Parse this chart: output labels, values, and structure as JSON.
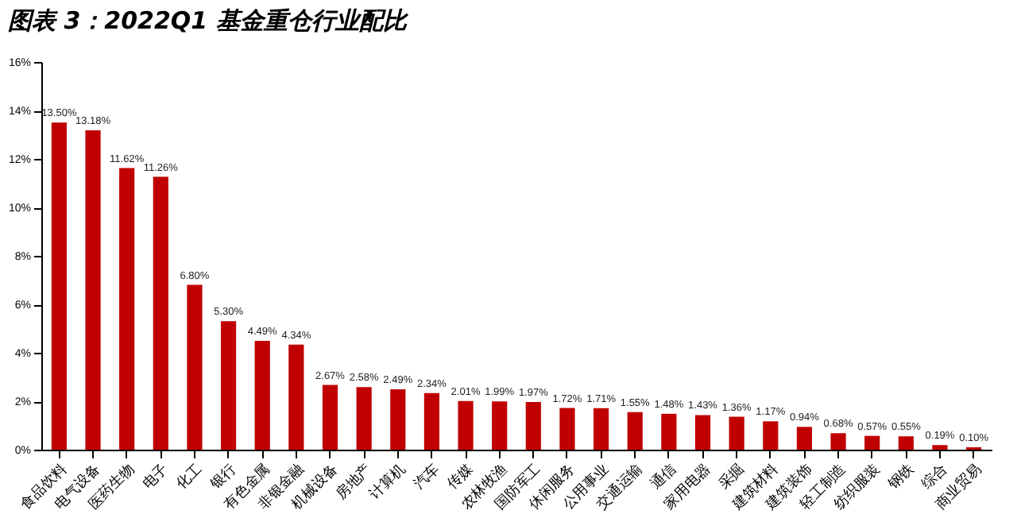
{
  "chart_data": {
    "type": "bar",
    "title": "图表 3：2022Q1 基金重仓行业配比",
    "categories": [
      "食品饮料",
      "电气设备",
      "医药生物",
      "电子",
      "化工",
      "银行",
      "有色金属",
      "非银金融",
      "机械设备",
      "房地产",
      "计算机",
      "汽车",
      "传媒",
      "农林牧渔",
      "国防军工",
      "休闲服务",
      "公用事业",
      "交通运输",
      "通信",
      "家用电器",
      "采掘",
      "建筑材料",
      "建筑装饰",
      "轻工制造",
      "纺织服装",
      "钢铁",
      "综合",
      "商业贸易"
    ],
    "values": [
      13.5,
      13.18,
      11.62,
      11.26,
      6.8,
      5.3,
      4.49,
      4.34,
      2.67,
      2.58,
      2.49,
      2.34,
      2.01,
      1.99,
      1.97,
      1.72,
      1.71,
      1.55,
      1.48,
      1.43,
      1.36,
      1.17,
      0.94,
      0.68,
      0.57,
      0.55,
      0.19,
      0.1
    ],
    "value_labels": [
      "13.50%",
      "13.18%",
      "11.62%",
      "11.26%",
      "6.80%",
      "5.30%",
      "4.49%",
      "4.34%",
      "2.67%",
      "2.58%",
      "2.49%",
      "2.34%",
      "2.01%",
      "1.99%",
      "1.97%",
      "1.72%",
      "1.71%",
      "1.55%",
      "1.48%",
      "1.43%",
      "1.36%",
      "1.17%",
      "0.94%",
      "0.68%",
      "0.57%",
      "0.55%",
      "0.19%",
      "0.10%"
    ],
    "color": "#c00000",
    "ylim": [
      0,
      16
    ],
    "yticks": [
      {
        "value": 0,
        "label": "0%"
      },
      {
        "value": 2,
        "label": "2%"
      },
      {
        "value": 4,
        "label": "4%"
      },
      {
        "value": 6,
        "label": "6%"
      },
      {
        "value": 8,
        "label": "8%"
      },
      {
        "value": 10,
        "label": "10%"
      },
      {
        "value": 12,
        "label": "12%"
      },
      {
        "value": 14,
        "label": "14%"
      },
      {
        "value": 16,
        "label": "16%"
      }
    ],
    "grid": false
  }
}
